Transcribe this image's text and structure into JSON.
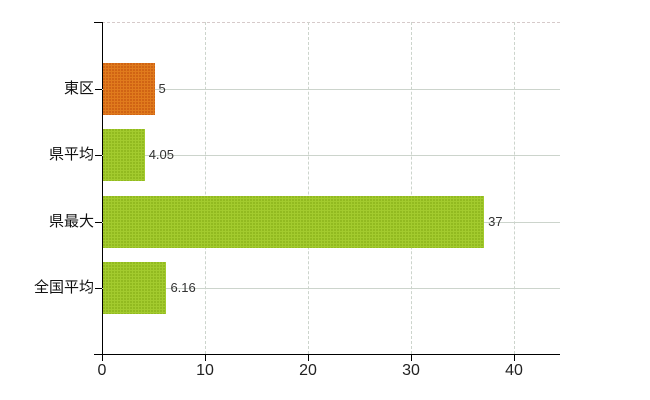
{
  "chart": {
    "title": "",
    "colors": {
      "bar_highlight": "#e07b1d",
      "bar_default": "#a3cb2e",
      "gridline": "#ccd4cc",
      "top_border": "#d6caca",
      "axis": "#000000",
      "category_label": "#111111",
      "tick_label": "#222222",
      "value_label": "#333333",
      "background": "#ffffff"
    }
  },
  "chart_data": {
    "type": "bar",
    "orientation": "horizontal",
    "title": "",
    "xlabel": "",
    "ylabel": "",
    "categories": [
      "東区",
      "県平均",
      "県最大",
      "全国平均"
    ],
    "values": [
      5,
      4.05,
      37,
      6.16
    ],
    "value_labels": [
      "5",
      "4.05",
      "37",
      "6.16"
    ],
    "bar_colors": [
      "#e07b1d",
      "#a3cb2e",
      "#a3cb2e",
      "#a3cb2e"
    ],
    "xticks": [
      0,
      10,
      20,
      30,
      40
    ],
    "xtick_labels": [
      "0",
      "10",
      "20",
      "30",
      "40"
    ],
    "xlim": [
      0,
      44.5
    ],
    "grid": true,
    "legend": false
  }
}
